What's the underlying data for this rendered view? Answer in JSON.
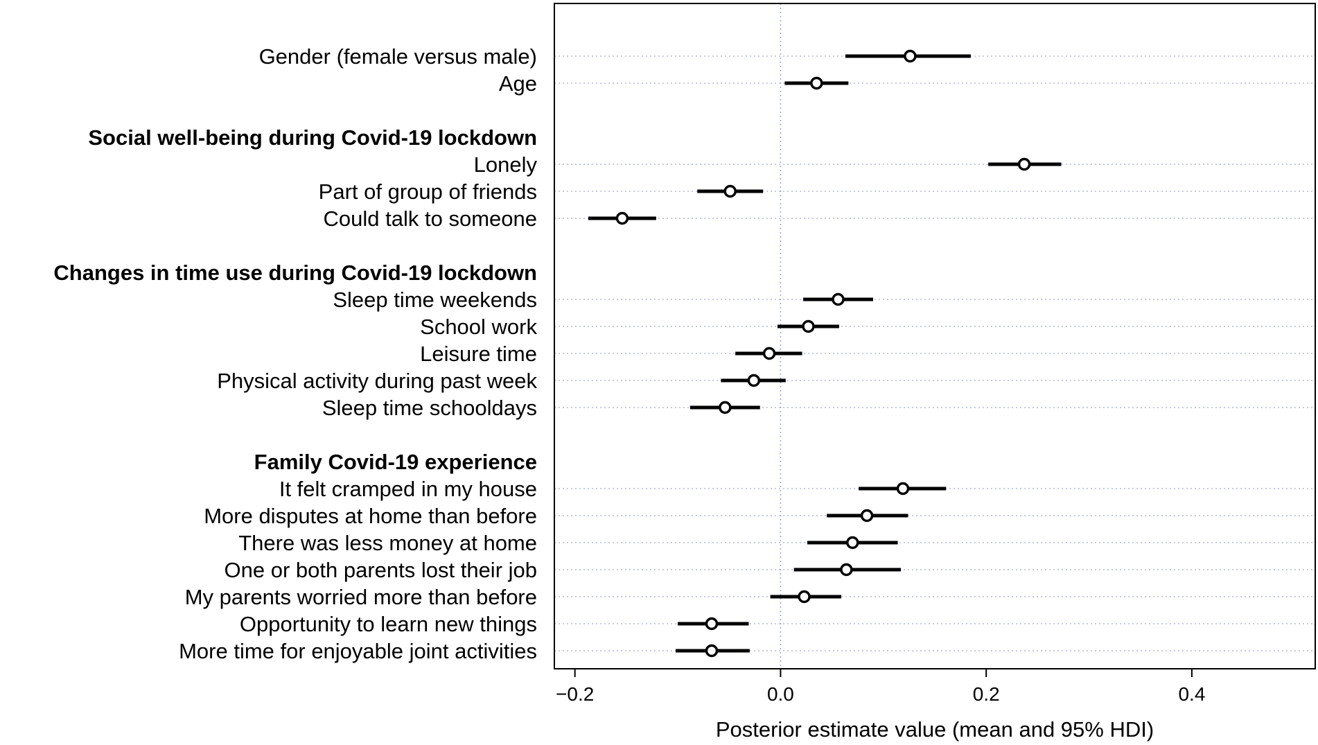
{
  "chart_data": {
    "type": "forest",
    "title": "",
    "xlabel": "Posterior estimate value (mean and 95% HDI)",
    "ylabel": "",
    "xlim": [
      -0.22,
      0.52
    ],
    "xticks": [
      -0.2,
      0.0,
      0.2,
      0.4
    ],
    "xtick_labels": [
      "−0.2",
      "0.0",
      "0.2",
      "0.4"
    ],
    "reference_line": 0.0,
    "colors": {
      "interval": "#000000",
      "point_fill": "#ffffff",
      "gridline": "#b3b8d9",
      "reference": "#9aa3d6"
    },
    "rows": [
      {
        "kind": "item",
        "label": "Gender (female versus male)",
        "mean": 0.126,
        "low": 0.063,
        "high": 0.185
      },
      {
        "kind": "item",
        "label": "Age",
        "mean": 0.035,
        "low": 0.004,
        "high": 0.066
      },
      {
        "kind": "spacer"
      },
      {
        "kind": "group",
        "label": "Social well-being during Covid-19 lockdown"
      },
      {
        "kind": "item",
        "label": "Lonely",
        "mean": 0.237,
        "low": 0.202,
        "high": 0.273
      },
      {
        "kind": "item",
        "label": "Part of group of friends",
        "mean": -0.049,
        "low": -0.081,
        "high": -0.017
      },
      {
        "kind": "item",
        "label": "Could talk to someone",
        "mean": -0.154,
        "low": -0.187,
        "high": -0.121
      },
      {
        "kind": "spacer"
      },
      {
        "kind": "group",
        "label": "Changes in time use during Covid-19 lockdown"
      },
      {
        "kind": "item",
        "label": "Sleep time weekends",
        "mean": 0.056,
        "low": 0.022,
        "high": 0.09
      },
      {
        "kind": "item",
        "label": "School work",
        "mean": 0.027,
        "low": -0.003,
        "high": 0.057
      },
      {
        "kind": "item",
        "label": "Leisure time",
        "mean": -0.011,
        "low": -0.044,
        "high": 0.021
      },
      {
        "kind": "item",
        "label": "Physical activity during past week",
        "mean": -0.026,
        "low": -0.058,
        "high": 0.005
      },
      {
        "kind": "item",
        "label": "Sleep time schooldays",
        "mean": -0.054,
        "low": -0.088,
        "high": -0.02
      },
      {
        "kind": "spacer"
      },
      {
        "kind": "group",
        "label": "Family Covid-19 experience"
      },
      {
        "kind": "item",
        "label": "It felt cramped in my house",
        "mean": 0.119,
        "low": 0.076,
        "high": 0.161
      },
      {
        "kind": "item",
        "label": "More disputes at home than before",
        "mean": 0.084,
        "low": 0.045,
        "high": 0.124
      },
      {
        "kind": "item",
        "label": "There was less money at home",
        "mean": 0.07,
        "low": 0.026,
        "high": 0.114
      },
      {
        "kind": "item",
        "label": "One or both parents lost their job",
        "mean": 0.064,
        "low": 0.013,
        "high": 0.117
      },
      {
        "kind": "item",
        "label": "My parents worried more than before",
        "mean": 0.023,
        "low": -0.01,
        "high": 0.059
      },
      {
        "kind": "item",
        "label": "Opportunity to learn new things",
        "mean": -0.067,
        "low": -0.1,
        "high": -0.031
      },
      {
        "kind": "item",
        "label": "More time for enjoyable joint activities",
        "mean": -0.067,
        "low": -0.102,
        "high": -0.03
      }
    ]
  }
}
